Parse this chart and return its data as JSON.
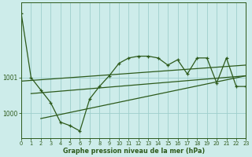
{
  "title": "Graphe pression niveau de la mer (hPa)",
  "background_color": "#cdecea",
  "grid_color": "#9ecfcc",
  "line_color": "#2d5a1b",
  "xlim": [
    0,
    23
  ],
  "ylim": [
    999.3,
    1003.1
  ],
  "ytick_positions": [
    1000,
    1001
  ],
  "ytick_labels": [
    "1000",
    "1001"
  ],
  "main_x": [
    0,
    1,
    2,
    3,
    4,
    5,
    6,
    7,
    8,
    9,
    10,
    11,
    12,
    13,
    14,
    15,
    16,
    17,
    18,
    19,
    20,
    21,
    22,
    23
  ],
  "main_y": [
    1002.8,
    1001.0,
    1000.65,
    1000.3,
    999.75,
    999.65,
    999.5,
    1000.4,
    1000.75,
    1001.05,
    1001.4,
    1001.55,
    1001.6,
    1001.6,
    1001.55,
    1001.35,
    1001.5,
    1001.1,
    1001.55,
    1001.55,
    1000.85,
    1001.55,
    1000.75,
    1000.75
  ],
  "trend1_x": [
    0,
    23
  ],
  "trend1_y": [
    1000.9,
    1001.35
  ],
  "trend2_x": [
    1,
    23
  ],
  "trend2_y": [
    1000.55,
    1001.05
  ],
  "trend3_x": [
    2,
    23
  ],
  "trend3_y": [
    999.85,
    1001.05
  ]
}
